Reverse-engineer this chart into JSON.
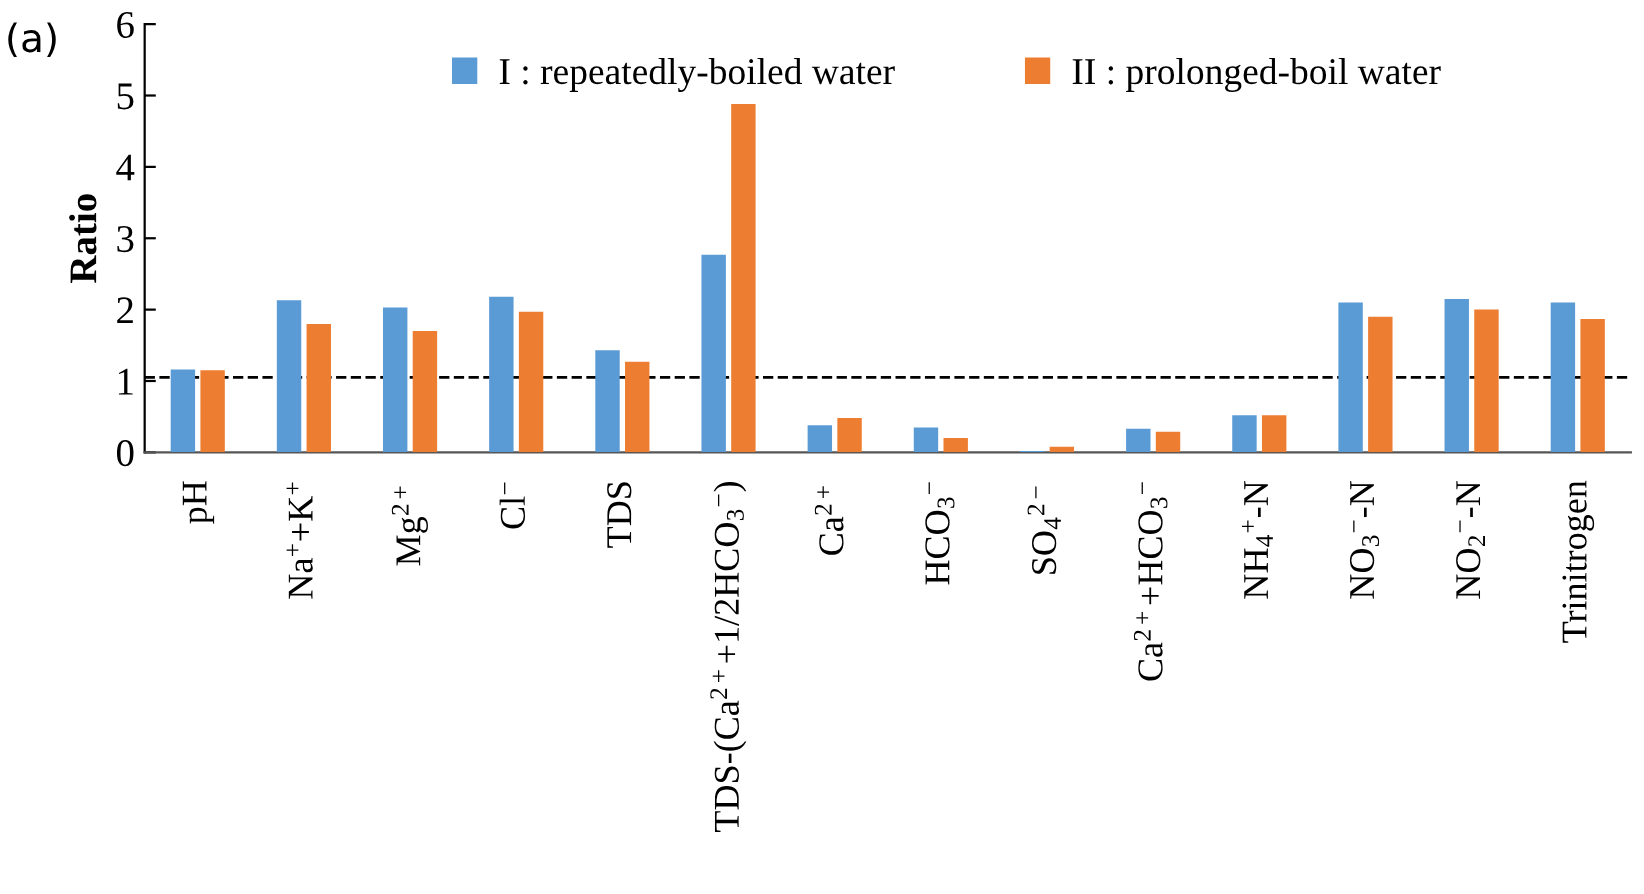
{
  "chart_data": {
    "type": "bar",
    "ylabel": "Ratio",
    "annotations": [
      "(a)"
    ],
    "categories": [
      "pH",
      "Na$^{+}$+K$^{+}$",
      "Mg$^{2+}$",
      "Cl$^{−}$",
      "TDS",
      "TDS-(Ca$^{2+}$+1/2HCO$_{3}$$^{−}$)",
      "Ca$^{2+}$",
      "HCO$_{3}$$^{−}$",
      "SO$_{4}$$^{2−}$",
      "Ca$^{2+}$+HCO$_{3}$$^{−}$",
      "NH$_{4}$$^{+}$-N",
      "NO$_{3}$$^{−}$-N",
      "NO$_{2}$$^{−}$-N",
      "Trinitrogen"
    ],
    "series": [
      {
        "name": "I : repeatedly-boiled water",
        "color": "#5b9bd5",
        "values": [
          1.16,
          2.13,
          2.03,
          2.18,
          1.43,
          2.77,
          0.38,
          0.35,
          0.02,
          0.33,
          0.52,
          2.1,
          2.15,
          2.1
        ]
      },
      {
        "name": "II : prolonged-boil water",
        "color": "#ed7d31",
        "values": [
          1.15,
          1.8,
          1.7,
          1.97,
          1.27,
          4.88,
          0.48,
          0.2,
          0.08,
          0.29,
          0.52,
          1.9,
          2.0,
          1.87
        ]
      }
    ],
    "ylim": [
      0,
      6
    ],
    "yticks": [
      0,
      1,
      2,
      3,
      4,
      5,
      6
    ],
    "ref_lines": [
      {
        "axis": "y",
        "value": 1.05,
        "color": "#000000",
        "line_style": "dashed"
      }
    ],
    "legend": "top",
    "grid": false
  }
}
